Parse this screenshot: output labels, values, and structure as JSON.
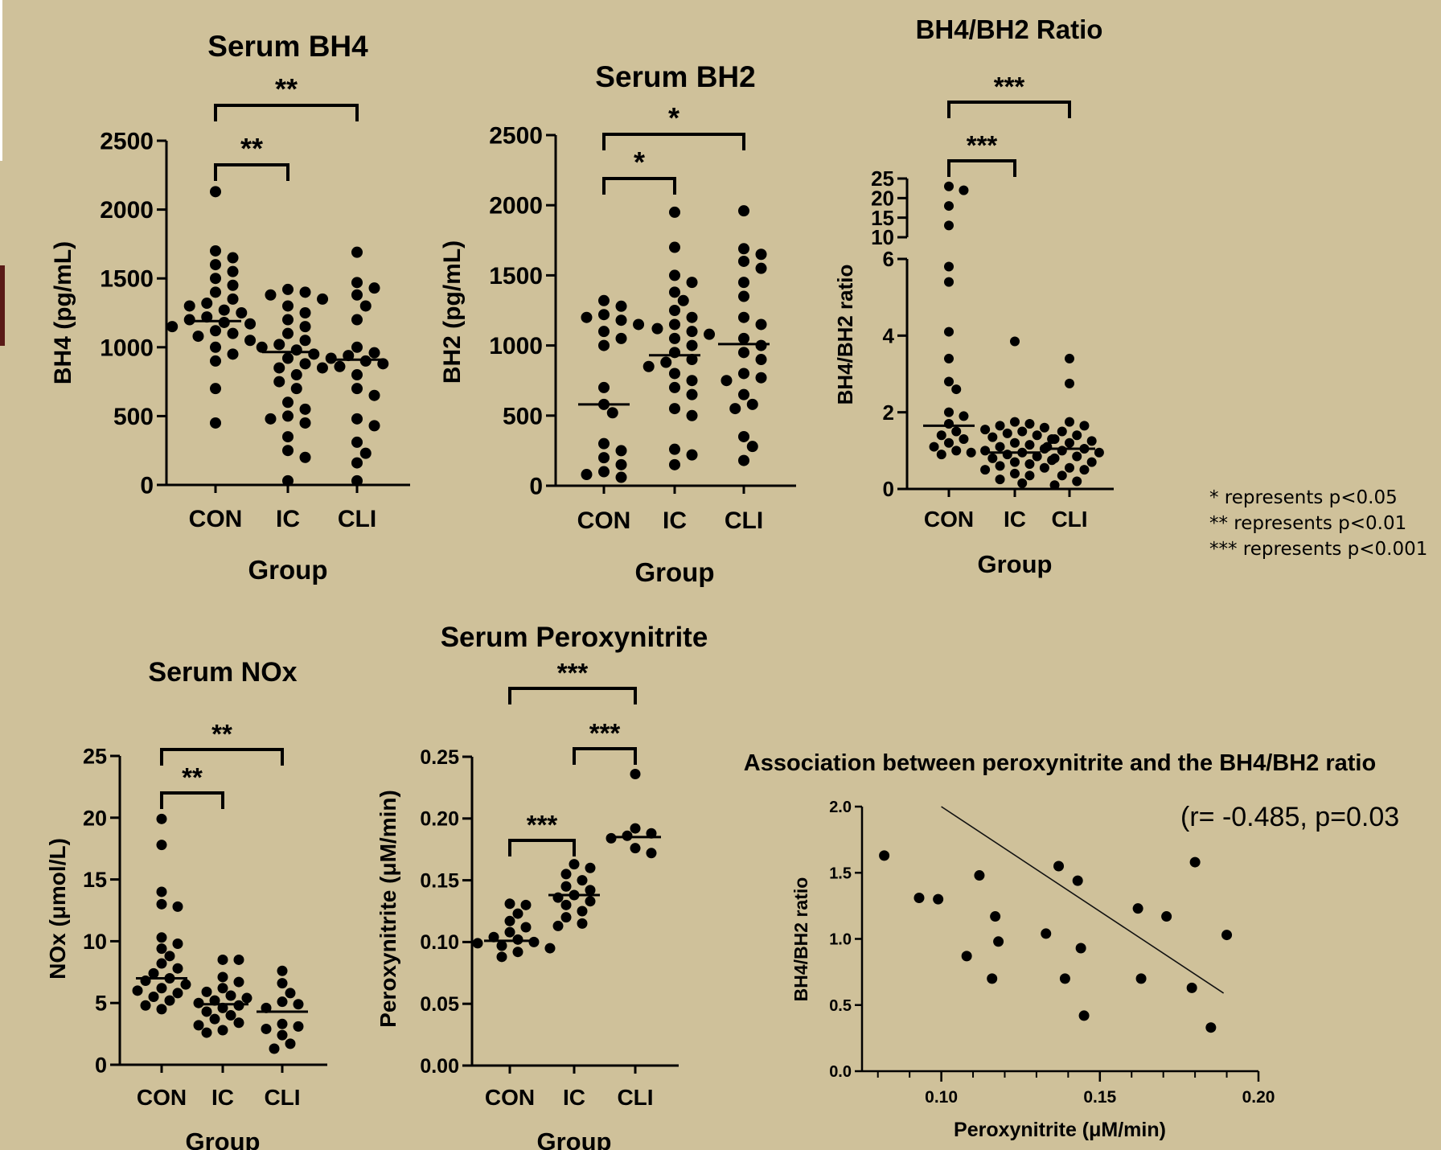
{
  "legend": {
    "line1": "* represents p<0.05",
    "line2": "** represents p<0.01",
    "line3": "*** represents p<0.001"
  },
  "chart_data": [
    {
      "id": "bh4",
      "type": "scatter",
      "title": "Serum BH4",
      "xlabel": "Group",
      "ylabel": "BH4 (pg/mL)",
      "categories": [
        "CON",
        "IC",
        "CLI"
      ],
      "ylim": [
        0,
        2500
      ],
      "yticks": [
        0,
        500,
        1000,
        1500,
        2000,
        2500
      ],
      "medians": [
        1190,
        965,
        910
      ],
      "points": [
        [
          2130,
          1700,
          1650,
          1600,
          1550,
          1500,
          1450,
          1400,
          1350,
          1320,
          1300,
          1270,
          1250,
          1220,
          1200,
          1180,
          1170,
          1150,
          1120,
          1100,
          1080,
          1050,
          1000,
          950,
          900,
          700,
          450
        ],
        [
          1420,
          1400,
          1380,
          1350,
          1300,
          1250,
          1200,
          1150,
          1100,
          1050,
          1020,
          1000,
          980,
          950,
          920,
          880,
          850,
          800,
          750,
          700,
          600,
          550,
          500,
          480,
          450,
          350,
          250,
          200,
          30
        ],
        [
          1690,
          1470,
          1430,
          1380,
          1300,
          1200,
          1000,
          960,
          940,
          920,
          900,
          880,
          860,
          850,
          800,
          700,
          650,
          480,
          430,
          310,
          230,
          160,
          30
        ]
      ],
      "brackets": [
        {
          "from": 0,
          "to": 1,
          "label": "**"
        },
        {
          "from": 0,
          "to": 2,
          "label": "**"
        }
      ]
    },
    {
      "id": "bh2",
      "type": "scatter",
      "title": "Serum BH2",
      "xlabel": "Group",
      "ylabel": "BH2 (pg/mL)",
      "categories": [
        "CON",
        "IC",
        "CLI"
      ],
      "ylim": [
        0,
        2500
      ],
      "yticks": [
        0,
        500,
        1000,
        1500,
        2000,
        2500
      ],
      "medians": [
        580,
        930,
        1010
      ],
      "points": [
        [
          1320,
          1280,
          1220,
          1200,
          1180,
          1150,
          1100,
          1050,
          1000,
          700,
          580,
          520,
          300,
          250,
          200,
          150,
          100,
          80,
          60
        ],
        [
          1950,
          1700,
          1500,
          1450,
          1380,
          1320,
          1250,
          1200,
          1150,
          1120,
          1100,
          1080,
          1050,
          1000,
          950,
          900,
          880,
          850,
          800,
          750,
          700,
          650,
          550,
          500,
          260,
          220,
          150
        ],
        [
          1960,
          1690,
          1650,
          1600,
          1550,
          1450,
          1350,
          1200,
          1150,
          1050,
          1000,
          950,
          900,
          800,
          770,
          750,
          650,
          580,
          550,
          350,
          280,
          180
        ]
      ],
      "brackets": [
        {
          "from": 0,
          "to": 1,
          "label": "*"
        },
        {
          "from": 0,
          "to": 2,
          "label": "*"
        }
      ]
    },
    {
      "id": "ratio",
      "type": "scatter",
      "title": "BH4/BH2 Ratio",
      "xlabel": "Group",
      "ylabel": "BH4/BH2 ratio",
      "categories": [
        "CON",
        "IC",
        "CLI"
      ],
      "ylim": [
        0,
        25
      ],
      "axis_break": [
        6,
        10
      ],
      "yticks": [
        0,
        2,
        4,
        6,
        10,
        15,
        20,
        25
      ],
      "medians": [
        1.65,
        0.95,
        1.05
      ],
      "points": [
        [
          23,
          22,
          18,
          13,
          5.8,
          5.4,
          4.1,
          3.4,
          2.8,
          2.6,
          2.0,
          1.9,
          1.7,
          1.5,
          1.4,
          1.3,
          1.2,
          1.1,
          1.0,
          0.95,
          0.9
        ],
        [
          3.85,
          1.75,
          1.7,
          1.65,
          1.6,
          1.55,
          1.5,
          1.45,
          1.4,
          1.35,
          1.3,
          1.2,
          1.15,
          1.1,
          1.05,
          1.0,
          0.95,
          0.9,
          0.85,
          0.8,
          0.75,
          0.7,
          0.65,
          0.6,
          0.55,
          0.5,
          0.4,
          0.35,
          0.25,
          0.15
        ],
        [
          3.4,
          2.75,
          1.75,
          1.65,
          1.5,
          1.4,
          1.3,
          1.25,
          1.2,
          1.1,
          1.05,
          1.0,
          0.95,
          0.85,
          0.8,
          0.7,
          0.55,
          0.5,
          0.35,
          0.2,
          0.1
        ]
      ],
      "brackets": [
        {
          "from": 0,
          "to": 1,
          "label": "***"
        },
        {
          "from": 0,
          "to": 2,
          "label": "***"
        }
      ]
    },
    {
      "id": "nox",
      "type": "scatter",
      "title": "Serum NOx",
      "xlabel": "Group",
      "ylabel": "NOx (μmol/L)",
      "categories": [
        "CON",
        "IC",
        "CLI"
      ],
      "ylim": [
        0,
        25
      ],
      "yticks": [
        0,
        5,
        10,
        15,
        20,
        25
      ],
      "medians": [
        7.0,
        4.9,
        4.3
      ],
      "points": [
        [
          19.9,
          17.8,
          14.0,
          13.0,
          12.8,
          10.3,
          9.8,
          9.4,
          8.8,
          8.2,
          7.8,
          7.4,
          7.0,
          6.8,
          6.5,
          6.2,
          6.0,
          5.8,
          5.5,
          5.2,
          4.8,
          4.5
        ],
        [
          8.5,
          8.5,
          7.1,
          6.7,
          6.2,
          5.9,
          5.6,
          5.4,
          5.2,
          5.0,
          4.8,
          4.6,
          4.3,
          4.0,
          3.7,
          3.4,
          3.2,
          2.8,
          2.6
        ],
        [
          7.6,
          6.6,
          5.8,
          5.1,
          4.9,
          4.6,
          3.3,
          3.1,
          2.9,
          2.4,
          1.7,
          1.3
        ]
      ],
      "brackets": [
        {
          "from": 0,
          "to": 1,
          "label": "**"
        },
        {
          "from": 0,
          "to": 2,
          "label": "**"
        }
      ]
    },
    {
      "id": "peroxy",
      "type": "scatter",
      "title": "Serum Peroxynitrite",
      "xlabel": "Group",
      "ylabel": "Peroxynitrite (μM/min)",
      "categories": [
        "CON",
        "IC",
        "CLI"
      ],
      "ylim": [
        0,
        0.25
      ],
      "yticks": [
        0.0,
        0.05,
        0.1,
        0.15,
        0.2,
        0.25
      ],
      "medians": [
        0.101,
        0.138,
        0.185
      ],
      "points": [
        [
          0.131,
          0.13,
          0.123,
          0.117,
          0.112,
          0.108,
          0.104,
          0.102,
          0.1,
          0.099,
          0.097,
          0.095,
          0.092,
          0.088
        ],
        [
          0.163,
          0.16,
          0.155,
          0.15,
          0.145,
          0.142,
          0.138,
          0.136,
          0.133,
          0.13,
          0.125,
          0.12,
          0.115,
          0.113
        ],
        [
          0.236,
          0.192,
          0.188,
          0.186,
          0.184,
          0.176,
          0.172
        ]
      ],
      "brackets": [
        {
          "from": 0,
          "to": 1,
          "label": "***"
        },
        {
          "from": 1,
          "to": 2,
          "label": "***"
        },
        {
          "from": 0,
          "to": 2,
          "label": "***"
        }
      ]
    },
    {
      "id": "assoc",
      "type": "scatter",
      "title": "Association between peroxynitrite and the BH4/BH2 ratio",
      "annotation": "(r= -0.485, p=0.03",
      "xlabel": "Peroxynitrite (μM/min)",
      "ylabel": "BH4/BH2 ratio",
      "xlim": [
        0.075,
        0.2
      ],
      "ylim": [
        0,
        2.0
      ],
      "xticks": [
        0.1,
        0.15,
        0.2
      ],
      "yticks": [
        0.0,
        0.5,
        1.0,
        1.5,
        2.0
      ],
      "x": [
        0.082,
        0.093,
        0.099,
        0.112,
        0.117,
        0.118,
        0.108,
        0.116,
        0.133,
        0.137,
        0.139,
        0.144,
        0.145,
        0.143,
        0.162,
        0.163,
        0.171,
        0.18,
        0.179,
        0.185,
        0.19
      ],
      "y": [
        1.63,
        1.31,
        1.3,
        1.48,
        1.17,
        0.98,
        0.87,
        0.7,
        1.04,
        1.55,
        0.7,
        0.93,
        0.42,
        1.44,
        1.23,
        0.7,
        1.17,
        1.58,
        0.63,
        0.33,
        1.03
      ],
      "fit_line": {
        "x": [
          0.1,
          0.189
        ],
        "y": [
          2.0,
          0.59
        ]
      }
    }
  ]
}
